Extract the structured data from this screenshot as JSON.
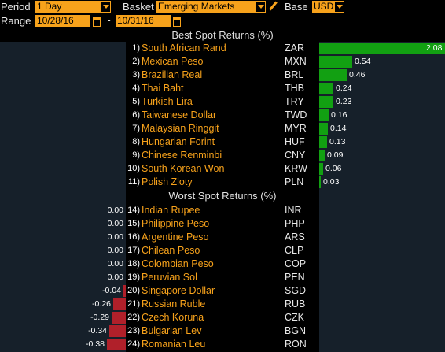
{
  "toolbar": {
    "period_label": "Period",
    "period_value": "1 Day",
    "basket_label": "Basket",
    "basket_value": "Emerging Markets",
    "base_label": "Base",
    "base_value": "USD",
    "range_label": "Range",
    "range_start": "10/28/16",
    "range_separator": "-",
    "range_end": "10/31/16"
  },
  "best_header": "Best Spot Returns (%)",
  "worst_header": "Worst Spot Returns (%)",
  "colors": {
    "accent": "#f7a21b",
    "positive": "#12a012",
    "negative": "#b0202a",
    "panel": "#16202a"
  },
  "icons": [
    "dropdown-arrow-icon",
    "calendar-icon",
    "pencil-icon"
  ],
  "scale_max": 2.08,
  "best": [
    {
      "rank": "1)",
      "name": "South African Rand",
      "code": "ZAR",
      "value": 2.08,
      "label": "2.08"
    },
    {
      "rank": "2)",
      "name": "Mexican Peso",
      "code": "MXN",
      "value": 0.54,
      "label": "0.54"
    },
    {
      "rank": "3)",
      "name": "Brazilian Real",
      "code": "BRL",
      "value": 0.46,
      "label": "0.46"
    },
    {
      "rank": "4)",
      "name": "Thai Baht",
      "code": "THB",
      "value": 0.24,
      "label": "0.24"
    },
    {
      "rank": "5)",
      "name": "Turkish Lira",
      "code": "TRY",
      "value": 0.23,
      "label": "0.23"
    },
    {
      "rank": "6)",
      "name": "Taiwanese Dollar",
      "code": "TWD",
      "value": 0.16,
      "label": "0.16"
    },
    {
      "rank": "7)",
      "name": "Malaysian Ringgit",
      "code": "MYR",
      "value": 0.14,
      "label": "0.14"
    },
    {
      "rank": "8)",
      "name": "Hungarian Forint",
      "code": "HUF",
      "value": 0.13,
      "label": "0.13"
    },
    {
      "rank": "9)",
      "name": "Chinese Renminbi",
      "code": "CNY",
      "value": 0.09,
      "label": "0.09"
    },
    {
      "rank": "10)",
      "name": "South Korean Won",
      "code": "KRW",
      "value": 0.06,
      "label": "0.06"
    },
    {
      "rank": "11)",
      "name": "Polish Zloty",
      "code": "PLN",
      "value": 0.03,
      "label": "0.03"
    }
  ],
  "worst": [
    {
      "rank": "14)",
      "name": "Indian Rupee",
      "code": "INR",
      "value": 0.0,
      "label": "0.00"
    },
    {
      "rank": "15)",
      "name": "Philippine Peso",
      "code": "PHP",
      "value": 0.0,
      "label": "0.00"
    },
    {
      "rank": "16)",
      "name": "Argentine Peso",
      "code": "ARS",
      "value": 0.0,
      "label": "0.00"
    },
    {
      "rank": "17)",
      "name": "Chilean Peso",
      "code": "CLP",
      "value": 0.0,
      "label": "0.00"
    },
    {
      "rank": "18)",
      "name": "Colombian Peso",
      "code": "COP",
      "value": 0.0,
      "label": "0.00"
    },
    {
      "rank": "19)",
      "name": "Peruvian Sol",
      "code": "PEN",
      "value": 0.0,
      "label": "0.00"
    },
    {
      "rank": "20)",
      "name": "Singapore Dollar",
      "code": "SGD",
      "value": -0.04,
      "label": "-0.04"
    },
    {
      "rank": "21)",
      "name": "Russian Ruble",
      "code": "RUB",
      "value": -0.26,
      "label": "-0.26"
    },
    {
      "rank": "22)",
      "name": "Czech Koruna",
      "code": "CZK",
      "value": -0.29,
      "label": "-0.29"
    },
    {
      "rank": "23)",
      "name": "Bulgarian Lev",
      "code": "BGN",
      "value": -0.34,
      "label": "-0.34"
    },
    {
      "rank": "24)",
      "name": "Romanian Leu",
      "code": "RON",
      "value": -0.38,
      "label": "-0.38"
    }
  ]
}
